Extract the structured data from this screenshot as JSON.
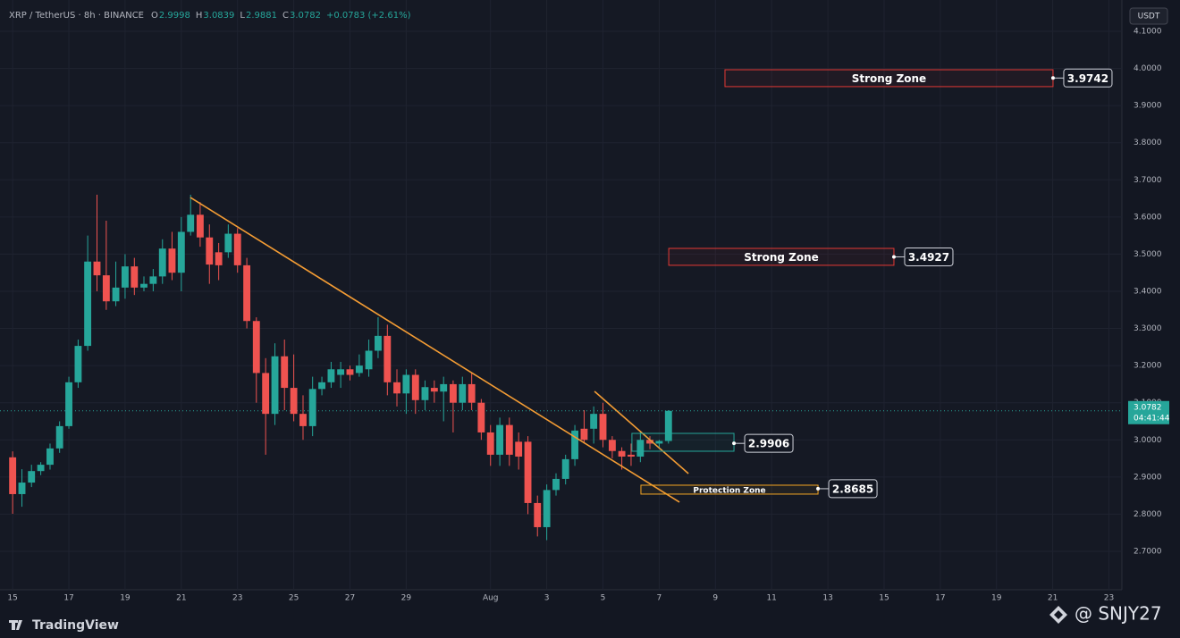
{
  "chart_data": {
    "type": "candlestick",
    "symbol": "XRP / TetherUS · 8h · BINANCE",
    "ohlc_header": [
      {
        "label": "O",
        "value": 2.9998
      },
      {
        "label": "H",
        "value": 3.0839
      },
      {
        "label": "L",
        "value": 2.9881
      },
      {
        "label": "C",
        "value": 3.0782
      }
    ],
    "change": "+0.0783 (+2.61%)",
    "currency": "USDT",
    "up_color": "#26a69a",
    "down_color": "#ef5350",
    "grid": true,
    "xlim": [
      14.55,
      54.46
    ],
    "ylim": [
      2.5965,
      4.1842
    ],
    "xticks": [
      {
        "value": 15,
        "label": "15"
      },
      {
        "value": 17,
        "label": "17"
      },
      {
        "value": 19,
        "label": "19"
      },
      {
        "value": 21,
        "label": "21"
      },
      {
        "value": 23,
        "label": "23"
      },
      {
        "value": 25,
        "label": "25"
      },
      {
        "value": 27,
        "label": "27"
      },
      {
        "value": 29,
        "label": "29"
      },
      {
        "value": 32,
        "label": "Aug"
      },
      {
        "value": 34,
        "label": "3"
      },
      {
        "value": 36,
        "label": "5"
      },
      {
        "value": 38,
        "label": "7"
      },
      {
        "value": 40,
        "label": "9"
      },
      {
        "value": 42,
        "label": "11"
      },
      {
        "value": 44,
        "label": "13"
      },
      {
        "value": 46,
        "label": "15"
      },
      {
        "value": 48,
        "label": "17"
      },
      {
        "value": 50,
        "label": "19"
      },
      {
        "value": 52,
        "label": "21"
      },
      {
        "value": 54,
        "label": "23"
      }
    ],
    "yticks": [
      {
        "value": 2.7,
        "label": "2.7000"
      },
      {
        "value": 2.8,
        "label": "2.8000"
      },
      {
        "value": 2.9,
        "label": "2.9000"
      },
      {
        "value": 3.0,
        "label": "3.0000"
      },
      {
        "value": 3.1,
        "label": "3.1000"
      },
      {
        "value": 3.2,
        "label": "3.2000"
      },
      {
        "value": 3.3,
        "label": "3.3000"
      },
      {
        "value": 3.4,
        "label": "3.4000"
      },
      {
        "value": 3.5,
        "label": "3.5000"
      },
      {
        "value": 3.6,
        "label": "3.6000"
      },
      {
        "value": 3.7,
        "label": "3.7000"
      },
      {
        "value": 3.8,
        "label": "3.8000"
      },
      {
        "value": 3.9,
        "label": "3.9000"
      },
      {
        "value": 4.0,
        "label": "4.0000"
      },
      {
        "value": 4.1,
        "label": "4.1000"
      }
    ],
    "candles": [
      [
        15.0,
        2.953,
        2.969,
        2.801,
        2.854
      ],
      [
        15.33,
        2.854,
        2.921,
        2.82,
        2.885
      ],
      [
        15.67,
        2.885,
        2.933,
        2.873,
        2.916
      ],
      [
        16.0,
        2.916,
        2.94,
        2.905,
        2.933
      ],
      [
        16.33,
        2.933,
        2.99,
        2.92,
        2.977
      ],
      [
        16.67,
        2.977,
        3.05,
        2.965,
        3.037
      ],
      [
        17.0,
        3.037,
        3.17,
        3.03,
        3.155
      ],
      [
        17.33,
        3.155,
        3.27,
        3.14,
        3.253
      ],
      [
        17.67,
        3.253,
        3.55,
        3.24,
        3.48
      ],
      [
        18.0,
        3.48,
        3.66,
        3.4,
        3.443
      ],
      [
        18.33,
        3.443,
        3.59,
        3.35,
        3.373
      ],
      [
        18.67,
        3.373,
        3.48,
        3.36,
        3.41
      ],
      [
        19.0,
        3.41,
        3.5,
        3.38,
        3.467
      ],
      [
        19.33,
        3.467,
        3.49,
        3.39,
        3.41
      ],
      [
        19.67,
        3.41,
        3.44,
        3.4,
        3.42
      ],
      [
        20.0,
        3.42,
        3.46,
        3.4,
        3.44
      ],
      [
        20.33,
        3.44,
        3.54,
        3.42,
        3.515
      ],
      [
        20.67,
        3.515,
        3.56,
        3.43,
        3.45
      ],
      [
        21.0,
        3.45,
        3.6,
        3.4,
        3.56
      ],
      [
        21.33,
        3.56,
        3.66,
        3.55,
        3.606
      ],
      [
        21.67,
        3.606,
        3.64,
        3.52,
        3.545
      ],
      [
        22.0,
        3.545,
        3.58,
        3.42,
        3.472
      ],
      [
        22.33,
        3.505,
        3.53,
        3.43,
        3.47
      ],
      [
        22.67,
        3.505,
        3.58,
        3.49,
        3.555
      ],
      [
        23.0,
        3.555,
        3.57,
        3.45,
        3.47
      ],
      [
        23.33,
        3.47,
        3.49,
        3.3,
        3.32
      ],
      [
        23.67,
        3.32,
        3.33,
        3.1,
        3.18
      ],
      [
        24.0,
        3.18,
        3.22,
        2.96,
        3.07
      ],
      [
        24.33,
        3.07,
        3.26,
        3.04,
        3.225
      ],
      [
        24.67,
        3.225,
        3.27,
        3.08,
        3.14
      ],
      [
        25.0,
        3.14,
        3.23,
        3.05,
        3.07
      ],
      [
        25.33,
        3.07,
        3.12,
        3.0,
        3.037
      ],
      [
        25.67,
        3.037,
        3.17,
        3.01,
        3.137
      ],
      [
        26.0,
        3.137,
        3.17,
        3.12,
        3.155
      ],
      [
        26.33,
        3.155,
        3.21,
        3.14,
        3.19
      ],
      [
        26.67,
        3.175,
        3.21,
        3.14,
        3.19
      ],
      [
        27.0,
        3.19,
        3.2,
        3.16,
        3.175
      ],
      [
        27.33,
        3.18,
        3.23,
        3.17,
        3.2
      ],
      [
        27.67,
        3.19,
        3.27,
        3.17,
        3.24
      ],
      [
        28.0,
        3.24,
        3.33,
        3.22,
        3.28
      ],
      [
        28.33,
        3.28,
        3.31,
        3.12,
        3.155
      ],
      [
        28.67,
        3.155,
        3.19,
        3.09,
        3.125
      ],
      [
        29.0,
        3.125,
        3.19,
        3.07,
        3.175
      ],
      [
        29.33,
        3.175,
        3.19,
        3.07,
        3.107
      ],
      [
        29.67,
        3.107,
        3.16,
        3.08,
        3.142
      ],
      [
        30.0,
        3.14,
        3.16,
        3.1,
        3.13
      ],
      [
        30.33,
        3.13,
        3.17,
        3.05,
        3.15
      ],
      [
        30.67,
        3.15,
        3.16,
        3.02,
        3.1
      ],
      [
        31.0,
        3.1,
        3.17,
        3.08,
        3.15
      ],
      [
        31.33,
        3.15,
        3.18,
        3.08,
        3.1
      ],
      [
        31.67,
        3.1,
        3.11,
        3.0,
        3.02
      ],
      [
        32.0,
        3.02,
        3.04,
        2.93,
        2.96
      ],
      [
        32.33,
        2.96,
        3.06,
        2.93,
        3.04
      ],
      [
        32.67,
        3.04,
        3.06,
        2.93,
        2.96
      ],
      [
        33.0,
        2.995,
        3.02,
        2.92,
        2.955
      ],
      [
        33.33,
        2.995,
        3.01,
        2.8,
        2.83
      ],
      [
        33.67,
        2.83,
        2.85,
        2.74,
        2.765
      ],
      [
        34.0,
        2.765,
        2.88,
        2.73,
        2.865
      ],
      [
        34.33,
        2.865,
        2.91,
        2.85,
        2.895
      ],
      [
        34.67,
        2.895,
        2.96,
        2.88,
        2.948
      ],
      [
        35.0,
        2.948,
        3.04,
        2.93,
        3.025
      ],
      [
        35.33,
        3.03,
        3.08,
        2.99,
        3.0
      ],
      [
        35.67,
        3.03,
        3.09,
        2.99,
        3.07
      ],
      [
        36.0,
        3.07,
        3.1,
        2.98,
        3.0
      ],
      [
        36.33,
        3.0,
        3.01,
        2.95,
        2.97
      ],
      [
        36.67,
        2.97,
        2.98,
        2.92,
        2.955
      ],
      [
        37.0,
        2.96,
        2.99,
        2.93,
        2.955
      ],
      [
        37.33,
        2.955,
        3.02,
        2.94,
        3.0
      ],
      [
        37.67,
        3.0,
        3.01,
        2.975,
        2.99
      ],
      [
        38.0,
        2.99,
        3.0,
        2.98,
        2.997
      ],
      [
        38.33,
        2.997,
        3.08,
        2.99,
        3.0782
      ]
    ],
    "trendlines": [
      {
        "x": [
          21.32,
          38.72
        ],
        "y": [
          3.6526,
          2.8323
        ],
        "color": "#f39c34"
      },
      {
        "x": [
          35.7,
          39.04
        ],
        "y": [
          3.1306,
          2.9093
        ],
        "color": "#f39c34"
      }
    ],
    "zones": [
      {
        "label": "Strong Zone",
        "value": 3.9742,
        "color": "#e53935",
        "x": [
          40.34,
          52.01
        ],
        "range": [
          3.951,
          3.9965
        ]
      },
      {
        "label": "Strong Zone",
        "value": 3.4927,
        "color": "#e53935",
        "x": [
          38.34,
          46.35
        ],
        "range": [
          3.47,
          3.5155
        ]
      },
      {
        "value": 2.9906,
        "color": "#26a69a",
        "x": [
          37.03,
          40.66
        ],
        "range": [
          2.9694,
          3.0175
        ]
      },
      {
        "label": "Protection Zone",
        "value": 2.8685,
        "color": "#f5a623",
        "x": [
          37.35,
          43.65
        ],
        "range": [
          2.854,
          2.878
        ]
      }
    ],
    "last_price": 3.0782,
    "countdown": "04:41:44",
    "brand": "TradingView",
    "watermark": "@ SNJY27"
  }
}
